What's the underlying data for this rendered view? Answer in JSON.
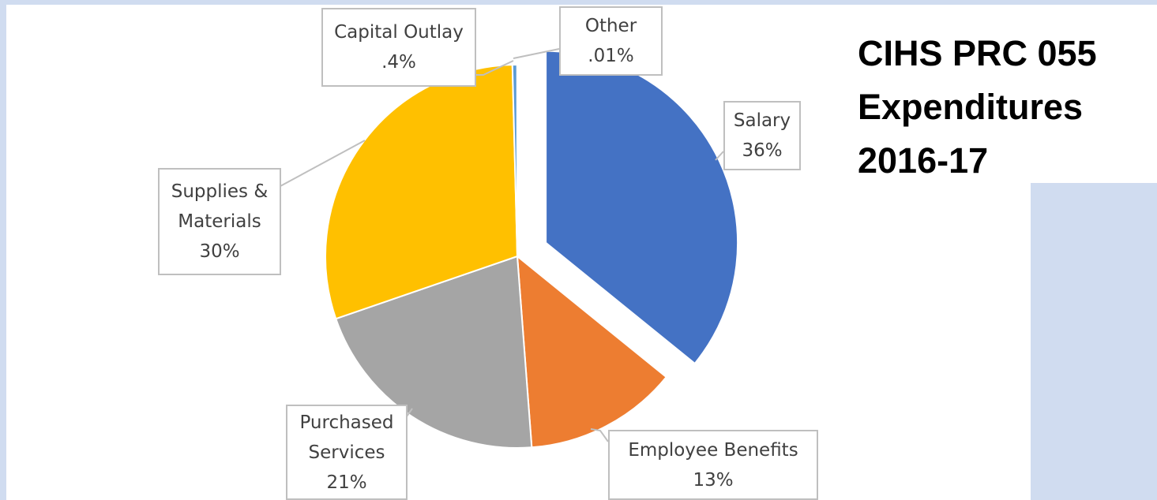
{
  "chart_data": {
    "type": "pie",
    "title": "CIHS PRC 055 Expenditures 2016-17",
    "categories": [
      "Salary",
      "Employee Benefits",
      "Purchased Services",
      "Supplies & Materials",
      "Capital Outlay",
      "Other"
    ],
    "values": [
      36,
      13,
      21,
      30,
      0.4,
      0.01
    ],
    "value_labels": [
      "36%",
      "13%",
      "21%",
      "30%",
      ".4%",
      ".01%"
    ],
    "colors": [
      "#4472c4",
      "#ed7d31",
      "#a5a5a5",
      "#ffc000",
      "#5b9bd5",
      "#70ad47"
    ]
  }
}
